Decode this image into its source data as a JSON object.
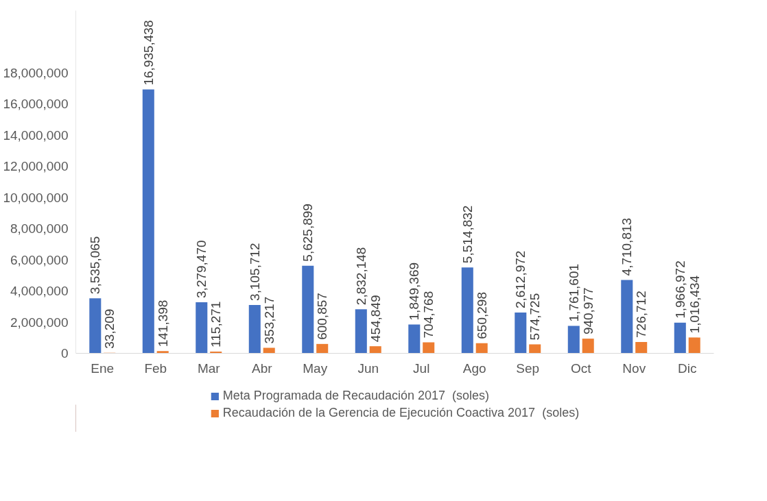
{
  "chart_data": {
    "type": "bar",
    "categories": [
      "Ene",
      "Feb",
      "Mar",
      "Abr",
      "May",
      "Jun",
      "Jul",
      "Ago",
      "Sep",
      "Oct",
      "Nov",
      "Dic"
    ],
    "series": [
      {
        "name": "Meta Programada de Recaudación 2017  (soles)",
        "color": "#4472c4",
        "values": [
          3535065,
          16935438,
          3279470,
          3105712,
          5625899,
          2832148,
          1849369,
          5514832,
          2612972,
          1761601,
          4710813,
          1966972
        ],
        "value_labels": [
          "3,535,065",
          "16,935,438",
          "3,279,470",
          "3,105,712",
          "5,625,899",
          "2,832,148",
          "1,849,369",
          "5,514,832",
          "2,612,972",
          "1,761,601",
          "4,710,813",
          "1,966,972"
        ]
      },
      {
        "name": "Recaudación de la Gerencia de Ejecución Coactiva 2017  (soles)",
        "color": "#ed7d31",
        "values": [
          33209,
          141398,
          115271,
          353217,
          600857,
          454849,
          704768,
          650298,
          574725,
          940977,
          726712,
          1016434
        ],
        "value_labels": [
          "33,209",
          "141,398",
          "115,271",
          "353,217",
          "600,857",
          "454,849",
          "704,768",
          "650,298",
          "574,725",
          "940,977",
          "726,712",
          "1,016,434"
        ]
      }
    ],
    "ylim": [
      0,
      22000000
    ],
    "yticks": [
      0,
      {
        "value": 2000000,
        "label": "2,000,000"
      },
      {
        "value": 4000000,
        "label": "4,000,000"
      },
      {
        "value": 6000000,
        "label": "6,000,000"
      },
      {
        "value": 8000000,
        "label": "8,000,000"
      },
      {
        "value": 10000000,
        "label": "10,000,000"
      },
      {
        "value": 12000000,
        "label": "12,000,000"
      },
      {
        "value": 14000000,
        "label": "14,000,000"
      },
      {
        "value": 16000000,
        "label": "16,000,000"
      },
      {
        "value": 18000000,
        "label": "18,000,000"
      }
    ],
    "legend": "bottom"
  }
}
